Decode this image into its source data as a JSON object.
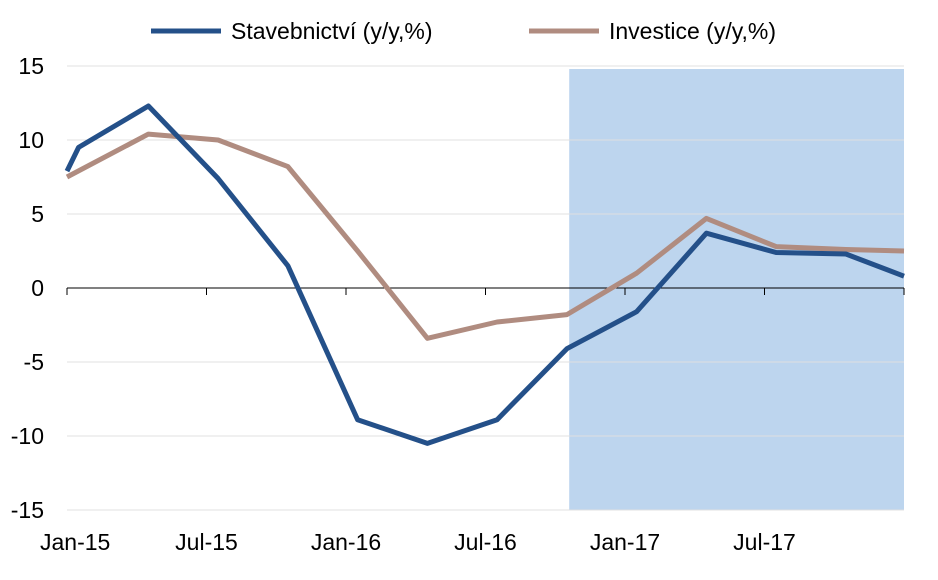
{
  "chart_data": {
    "type": "line",
    "title": "",
    "xlabel": "",
    "ylabel": "",
    "ylim": [
      -15,
      15
    ],
    "y_ticks": [
      15,
      10,
      5,
      0,
      -5,
      -10,
      -15
    ],
    "x_tick_labels": [
      "Jan-15",
      "Jul-15",
      "Jan-16",
      "Jul-16",
      "Jan-17",
      "Jul-17"
    ],
    "x_tick_months": [
      0,
      6,
      12,
      18,
      24,
      30
    ],
    "x_range_months": [
      0,
      36
    ],
    "grid": "horizontal",
    "legend_position": "top",
    "shaded_region": {
      "from_month": 21.6,
      "to_month": 36,
      "color": "#bdd5ee"
    },
    "series": [
      {
        "name": "Stavebnictví (y/y,%)",
        "color": "#245089",
        "months": [
          0,
          0.5,
          3.5,
          6.5,
          9.5,
          12.5,
          15.5,
          18.5,
          21.5,
          24.5,
          27.5,
          30.5,
          33.5,
          36
        ],
        "values": [
          7.9,
          9.5,
          12.3,
          7.4,
          1.5,
          -8.9,
          -10.5,
          -8.9,
          -4.1,
          -1.6,
          3.7,
          2.4,
          2.3,
          0.8
        ]
      },
      {
        "name": "Investice (y/y,%)",
        "color": "#b08c80",
        "months": [
          0,
          3.5,
          6.5,
          9.5,
          12.5,
          15.5,
          18.5,
          21.5,
          24.5,
          27.5,
          30.5,
          33.5,
          36
        ],
        "values": [
          7.5,
          10.4,
          10.0,
          8.2,
          2.5,
          -3.4,
          -2.3,
          -1.8,
          1.0,
          4.7,
          2.8,
          2.6,
          2.5
        ]
      }
    ]
  }
}
